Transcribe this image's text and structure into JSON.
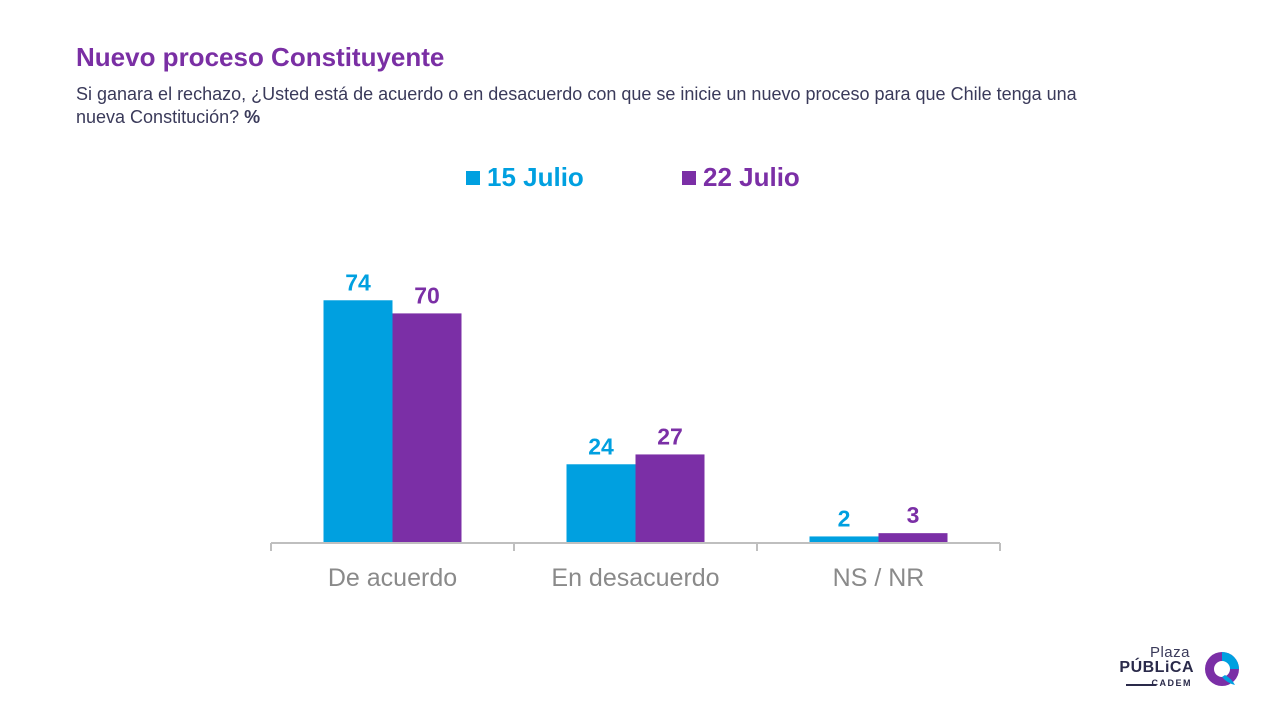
{
  "header": {
    "title": "Nuevo proceso Constituyente",
    "subtitle": "Si ganara el rechazo, ¿Usted está de acuerdo o en desacuerdo con que se inicie un nuevo proceso para que Chile tenga una nueva Constitución?",
    "unit": "%"
  },
  "logo": {
    "line1": "Plaza",
    "line2": "PÚBLiCA",
    "line3": "CADEM"
  },
  "colors": {
    "title": "#7a2fa4",
    "series1": "#00a0e0",
    "series2": "#7b2fa6",
    "axis": "#bfbfbf",
    "category_label": "#8a8a8a"
  },
  "chart_data": {
    "type": "bar",
    "categories": [
      "De acuerdo",
      "En desacuerdo",
      "NS / NR"
    ],
    "series": [
      {
        "name": "15 Julio",
        "values": [
          74,
          24,
          2
        ]
      },
      {
        "name": "22 Julio",
        "values": [
          70,
          27,
          3
        ]
      }
    ],
    "ylim": [
      0,
      80
    ],
    "legend": "top-center",
    "grid": false,
    "data_labels": true
  }
}
